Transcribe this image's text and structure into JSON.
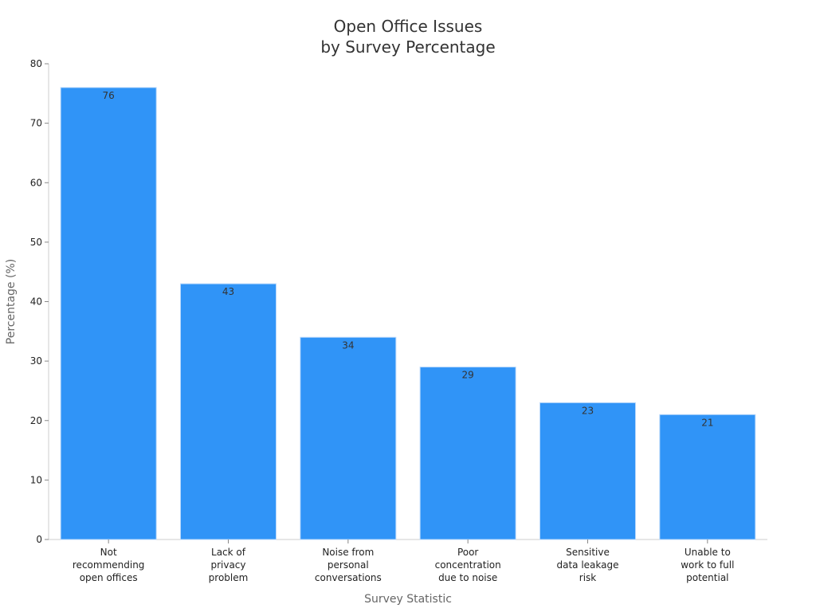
{
  "chart_data": {
    "type": "bar",
    "title": [
      "Open Office Issues",
      "by Survey Percentage"
    ],
    "xlabel": "Survey Statistic",
    "ylabel": "Percentage (%)",
    "ylim": [
      0,
      80
    ],
    "yticks": [
      0,
      10,
      20,
      30,
      40,
      50,
      60,
      70,
      80
    ],
    "grid": false,
    "categories": [
      [
        "Not",
        "recommending",
        "open offices"
      ],
      [
        "Lack of",
        "privacy",
        "problem"
      ],
      [
        "Noise from",
        "personal",
        "conversations"
      ],
      [
        "Poor",
        "concentration",
        "due to noise"
      ],
      [
        "Sensitive",
        "data leakage",
        "risk"
      ],
      [
        "Unable to",
        "work to full",
        "potential"
      ]
    ],
    "values": [
      76,
      43,
      34,
      29,
      23,
      21
    ],
    "data_labels": [
      "76",
      "43",
      "34",
      "29",
      "23",
      "21"
    ],
    "bar_color": "#3094f7",
    "bar_edge_color": "#b8d8fb"
  }
}
